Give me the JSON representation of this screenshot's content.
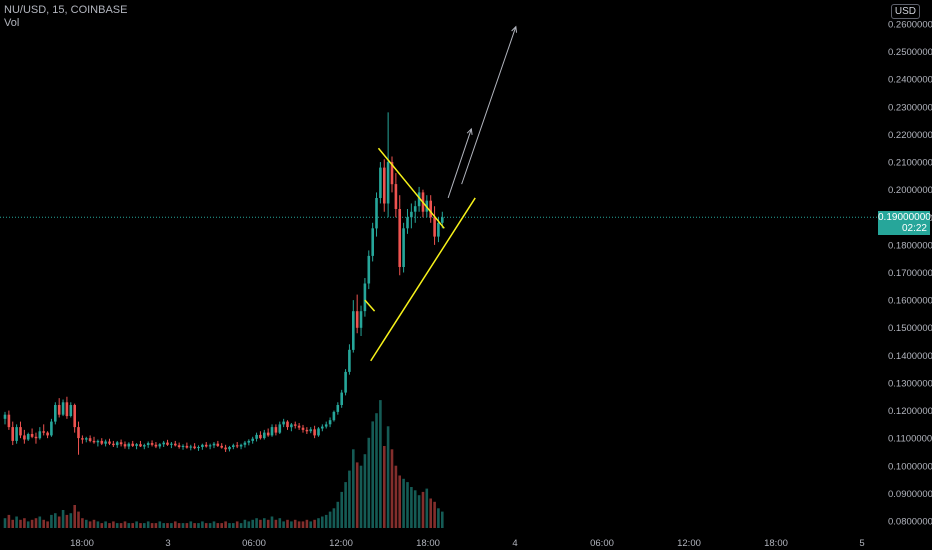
{
  "header": {
    "symbol": "NU/USD, 15, COINBASE",
    "indicator": "Vol",
    "currency": "USD"
  },
  "last_price": {
    "value": "0.19000000",
    "countdown": "02:22"
  },
  "colors": {
    "up": "#26a69a",
    "down": "#ef5350",
    "drawing": "#f7f21a",
    "arrow": "#b2b5be",
    "axis_text": "#b2b5be"
  },
  "chart_data": {
    "type": "candlestick",
    "yaxis": {
      "ticks": [
        "0.26000000",
        "0.25000000",
        "0.24000000",
        "0.23000000",
        "0.22000000",
        "0.21000000",
        "0.20000000",
        "0.19000000",
        "0.18000000",
        "0.17000000",
        "0.16000000",
        "0.15000000",
        "0.14000000",
        "0.13000000",
        "0.12000000",
        "0.11000000",
        "0.10000000",
        "0.09000000",
        "0.08000000"
      ],
      "ylim": [
        0.0765,
        0.2635
      ]
    },
    "xaxis": {
      "ticks": [
        "18:00",
        "3",
        "06:00",
        "12:00",
        "18:00",
        "4",
        "06:00",
        "12:00",
        "18:00",
        "5"
      ]
    },
    "candles": [
      [
        0.117,
        0.1195,
        0.115,
        0.1185
      ],
      [
        0.1185,
        0.12,
        0.113,
        0.114
      ],
      [
        0.114,
        0.116,
        0.1075,
        0.109
      ],
      [
        0.109,
        0.115,
        0.108,
        0.114
      ],
      [
        0.114,
        0.116,
        0.11,
        0.111
      ],
      [
        0.111,
        0.113,
        0.108,
        0.1095
      ],
      [
        0.1095,
        0.112,
        0.109,
        0.1115
      ],
      [
        0.1115,
        0.1135,
        0.11,
        0.1105
      ],
      [
        0.1105,
        0.112,
        0.108,
        0.11
      ],
      [
        0.11,
        0.114,
        0.1095,
        0.1125
      ],
      [
        0.1125,
        0.115,
        0.111,
        0.112
      ],
      [
        0.112,
        0.1125,
        0.11,
        0.111
      ],
      [
        0.111,
        0.117,
        0.1105,
        0.116
      ],
      [
        0.116,
        0.123,
        0.115,
        0.122
      ],
      [
        0.122,
        0.1245,
        0.1175,
        0.1185
      ],
      [
        0.1185,
        0.124,
        0.118,
        0.123
      ],
      [
        0.123,
        0.125,
        0.117,
        0.118
      ],
      [
        0.118,
        0.123,
        0.1175,
        0.122
      ],
      [
        0.122,
        0.1225,
        0.112,
        0.114
      ],
      [
        0.114,
        0.116,
        0.104,
        0.11
      ],
      [
        0.11,
        0.111,
        0.108,
        0.1095
      ],
      [
        0.1095,
        0.1105,
        0.1085,
        0.11
      ],
      [
        0.11,
        0.111,
        0.1085,
        0.109
      ],
      [
        0.109,
        0.1105,
        0.108,
        0.1085
      ],
      [
        0.1085,
        0.1095,
        0.107,
        0.109
      ],
      [
        0.109,
        0.11,
        0.1075,
        0.108
      ],
      [
        0.108,
        0.1095,
        0.107,
        0.1088
      ],
      [
        0.1088,
        0.1098,
        0.1075,
        0.108
      ],
      [
        0.108,
        0.109,
        0.1068,
        0.1075
      ],
      [
        0.1075,
        0.109,
        0.1065,
        0.1085
      ],
      [
        0.1085,
        0.1095,
        0.107,
        0.1078
      ],
      [
        0.1078,
        0.1088,
        0.1062,
        0.107
      ],
      [
        0.107,
        0.1085,
        0.106,
        0.108
      ],
      [
        0.108,
        0.109,
        0.1068,
        0.1072
      ],
      [
        0.1072,
        0.1082,
        0.106,
        0.1078
      ],
      [
        0.1078,
        0.109,
        0.1068,
        0.107
      ],
      [
        0.107,
        0.108,
        0.106,
        0.1075
      ],
      [
        0.1075,
        0.1088,
        0.1065,
        0.1082
      ],
      [
        0.1082,
        0.1092,
        0.107,
        0.1076
      ],
      [
        0.1076,
        0.1086,
        0.1064,
        0.107
      ],
      [
        0.107,
        0.1082,
        0.1062,
        0.1078
      ],
      [
        0.1078,
        0.109,
        0.1068,
        0.1084
      ],
      [
        0.1084,
        0.1094,
        0.1072,
        0.1076
      ],
      [
        0.1076,
        0.1086,
        0.1064,
        0.108
      ],
      [
        0.108,
        0.109,
        0.107,
        0.1074
      ],
      [
        0.1074,
        0.1084,
        0.1062,
        0.1068
      ],
      [
        0.1068,
        0.1078,
        0.1058,
        0.1072
      ],
      [
        0.1072,
        0.1084,
        0.1062,
        0.1066
      ],
      [
        0.1066,
        0.1076,
        0.1056,
        0.107
      ],
      [
        0.107,
        0.1082,
        0.106,
        0.1064
      ],
      [
        0.1064,
        0.1074,
        0.1054,
        0.1068
      ],
      [
        0.1068,
        0.108,
        0.1058,
        0.1076
      ],
      [
        0.1076,
        0.1086,
        0.1066,
        0.107
      ],
      [
        0.107,
        0.108,
        0.106,
        0.1074
      ],
      [
        0.1074,
        0.1086,
        0.1064,
        0.108
      ],
      [
        0.108,
        0.109,
        0.1068,
        0.1072
      ],
      [
        0.1072,
        0.1082,
        0.1062,
        0.1066
      ],
      [
        0.1066,
        0.1076,
        0.105,
        0.106
      ],
      [
        0.106,
        0.1072,
        0.1052,
        0.1068
      ],
      [
        0.1068,
        0.108,
        0.106,
        0.1074
      ],
      [
        0.1074,
        0.1086,
        0.1064,
        0.107
      ],
      [
        0.107,
        0.108,
        0.106,
        0.1076
      ],
      [
        0.1076,
        0.109,
        0.1066,
        0.1084
      ],
      [
        0.1084,
        0.1096,
        0.1074,
        0.109
      ],
      [
        0.109,
        0.1105,
        0.108,
        0.1098
      ],
      [
        0.1098,
        0.112,
        0.1088,
        0.1112
      ],
      [
        0.1112,
        0.1125,
        0.1095,
        0.11
      ],
      [
        0.11,
        0.113,
        0.1095,
        0.112
      ],
      [
        0.112,
        0.1135,
        0.1105,
        0.111
      ],
      [
        0.111,
        0.115,
        0.1105,
        0.114
      ],
      [
        0.114,
        0.115,
        0.111,
        0.112
      ],
      [
        0.112,
        0.116,
        0.1115,
        0.115
      ],
      [
        0.115,
        0.117,
        0.114,
        0.116
      ],
      [
        0.116,
        0.1165,
        0.113,
        0.114
      ],
      [
        0.114,
        0.1155,
        0.1125,
        0.115
      ],
      [
        0.115,
        0.116,
        0.1135,
        0.1145
      ],
      [
        0.1145,
        0.1155,
        0.113,
        0.1138
      ],
      [
        0.1138,
        0.1148,
        0.112,
        0.113
      ],
      [
        0.113,
        0.114,
        0.1115,
        0.1125
      ],
      [
        0.1125,
        0.114,
        0.1118,
        0.1132
      ],
      [
        0.1132,
        0.1145,
        0.11,
        0.111
      ],
      [
        0.111,
        0.114,
        0.1105,
        0.1135
      ],
      [
        0.1135,
        0.115,
        0.1125,
        0.1142
      ],
      [
        0.1142,
        0.116,
        0.1135,
        0.115
      ],
      [
        0.115,
        0.1175,
        0.114,
        0.1165
      ],
      [
        0.1165,
        0.12,
        0.116,
        0.1195
      ],
      [
        0.1195,
        0.123,
        0.1185,
        0.122
      ],
      [
        0.122,
        0.1275,
        0.121,
        0.1265
      ],
      [
        0.1265,
        0.135,
        0.1255,
        0.134
      ],
      [
        0.134,
        0.144,
        0.133,
        0.142
      ],
      [
        0.142,
        0.16,
        0.141,
        0.156
      ],
      [
        0.156,
        0.162,
        0.148,
        0.15
      ],
      [
        0.15,
        0.158,
        0.147,
        0.156
      ],
      [
        0.156,
        0.168,
        0.154,
        0.166
      ],
      [
        0.166,
        0.178,
        0.164,
        0.176
      ],
      [
        0.176,
        0.188,
        0.174,
        0.186
      ],
      [
        0.186,
        0.199,
        0.183,
        0.197
      ],
      [
        0.197,
        0.21,
        0.195,
        0.208
      ],
      [
        0.208,
        0.211,
        0.192,
        0.195
      ],
      [
        0.195,
        0.228,
        0.19,
        0.21
      ],
      [
        0.21,
        0.212,
        0.199,
        0.202
      ],
      [
        0.202,
        0.206,
        0.19,
        0.193
      ],
      [
        0.193,
        0.198,
        0.169,
        0.172
      ],
      [
        0.172,
        0.188,
        0.17,
        0.186
      ],
      [
        0.186,
        0.193,
        0.184,
        0.19
      ],
      [
        0.19,
        0.195,
        0.186,
        0.192
      ],
      [
        0.192,
        0.196,
        0.188,
        0.194
      ],
      [
        0.194,
        0.201,
        0.192,
        0.199
      ],
      [
        0.199,
        0.2,
        0.19,
        0.192
      ],
      [
        0.192,
        0.198,
        0.19,
        0.196
      ],
      [
        0.196,
        0.198,
        0.188,
        0.19
      ],
      [
        0.19,
        0.194,
        0.18,
        0.183
      ],
      [
        0.183,
        0.19,
        0.181,
        0.188
      ],
      [
        0.188,
        0.192,
        0.186,
        0.19
      ]
    ],
    "volumes": [
      6,
      8,
      5,
      7,
      5,
      6,
      4,
      5,
      6,
      7,
      5,
      4,
      8,
      9,
      7,
      11,
      8,
      9,
      14,
      10,
      6,
      5,
      4,
      5,
      4,
      3,
      4,
      3,
      4,
      3,
      3,
      4,
      3,
      3,
      4,
      3,
      3,
      4,
      3,
      3,
      4,
      3,
      3,
      3,
      4,
      3,
      3,
      3,
      4,
      3,
      3,
      4,
      3,
      3,
      4,
      3,
      3,
      4,
      3,
      3,
      4,
      3,
      5,
      4,
      5,
      6,
      5,
      6,
      5,
      7,
      5,
      6,
      4,
      5,
      4,
      5,
      4,
      4,
      5,
      4,
      5,
      6,
      7,
      8,
      10,
      12,
      16,
      22,
      28,
      35,
      48,
      40,
      38,
      45,
      55,
      65,
      70,
      78,
      50,
      62,
      48,
      38,
      32,
      30,
      28,
      25,
      23,
      20,
      22,
      24,
      18,
      16,
      12,
      10
    ],
    "lines": [
      {
        "kind": "trend",
        "from": [
          94.5,
          0.138
        ],
        "to": [
          121.5,
          0.197
        ]
      },
      {
        "kind": "trend",
        "from": [
          96.5,
          0.215
        ],
        "to": [
          113.5,
          0.186
        ]
      },
      {
        "kind": "trend",
        "from": [
          93.0,
          0.16
        ],
        "to": [
          95.5,
          0.156
        ]
      }
    ],
    "arrows": [
      {
        "from": [
          114.5,
          0.197
        ],
        "to": [
          120.5,
          0.222
        ]
      },
      {
        "from": [
          118.0,
          0.202
        ],
        "to": [
          132.0,
          0.259
        ]
      }
    ],
    "price_line": 0.19
  }
}
